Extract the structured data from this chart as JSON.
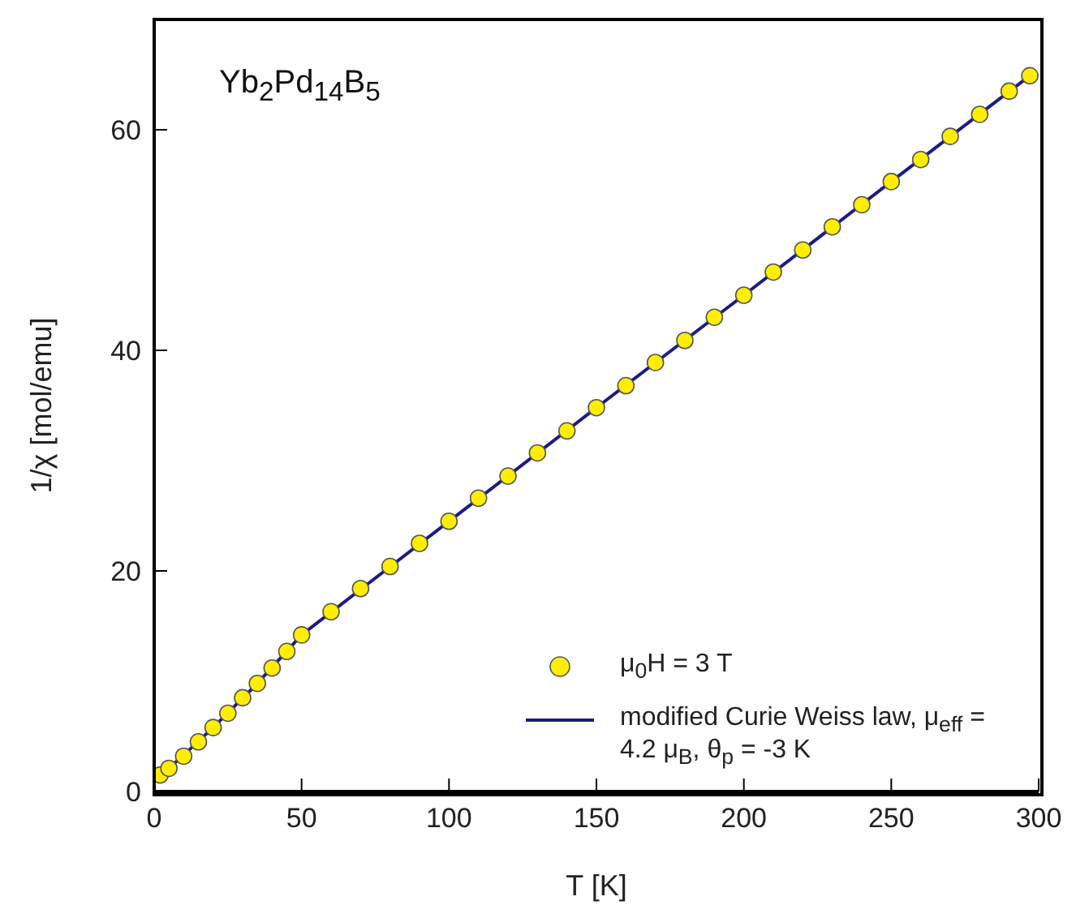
{
  "chart_data": {
    "type": "scatter",
    "xlabel": "T [K]",
    "ylabel": "1/χ [mol/emu]",
    "annotations": [
      "Yb$_{2}$Pd$_{14}$B$_{5}$"
    ],
    "xlim": [
      0,
      300
    ],
    "xticks": [
      0,
      50,
      100,
      150,
      200,
      250,
      300
    ],
    "ylim": [
      0,
      70
    ],
    "yticks": [
      0,
      20,
      40,
      60
    ],
    "grid": false,
    "legend": "bottom right",
    "series": [
      {
        "name": "μ$_{0}$H = 3 T",
        "marker": "circle",
        "color": "#ffee00",
        "x": [
          2,
          5,
          10,
          15,
          20,
          25,
          30,
          35,
          40,
          45,
          50,
          60,
          70,
          80,
          90,
          100,
          110,
          120,
          130,
          140,
          150,
          160,
          170,
          180,
          190,
          200,
          210,
          220,
          230,
          240,
          250,
          260,
          270,
          280,
          290,
          297
        ],
        "values": [
          1.5,
          2.1,
          3.2,
          4.5,
          5.8,
          7.1,
          8.5,
          9.8,
          11.2,
          12.7,
          14.2,
          16.3,
          18.4,
          20.4,
          22.5,
          24.5,
          26.6,
          28.6,
          30.7,
          32.7,
          34.8,
          36.8,
          38.9,
          40.9,
          43.0,
          45.0,
          47.1,
          49.1,
          51.2,
          53.2,
          55.3,
          57.3,
          59.4,
          61.4,
          63.5,
          64.9
        ]
      },
      {
        "name": "modified Curie Weiss law, μ$_{eff}$ = 4.2 μ$_{B}$, θ$_{p}$ = -3 K",
        "type": "line",
        "marker": "none",
        "line_style": "solid",
        "color": "#1c1c80",
        "x": [
          2,
          10,
          20,
          35,
          50,
          100,
          150,
          200,
          250,
          297
        ],
        "values": [
          1.4,
          3.3,
          5.8,
          9.8,
          14.2,
          24.5,
          34.8,
          45.0,
          55.3,
          64.9
        ]
      }
    ]
  }
}
